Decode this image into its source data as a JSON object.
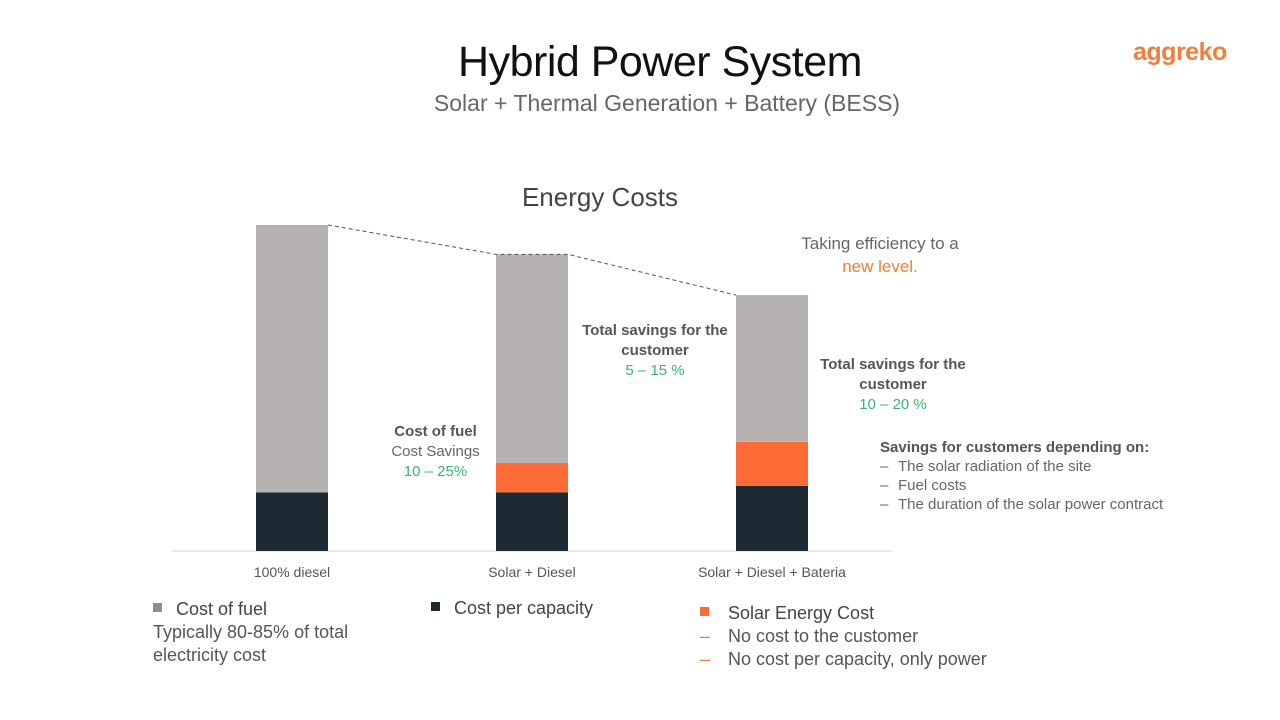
{
  "header": {
    "title": "Hybrid Power System",
    "subtitle": "Solar + Thermal Generation + Battery (BESS)",
    "logo": "aggreko"
  },
  "colors": {
    "fuel": "#b5b1b0",
    "capacity": "#1e2a33",
    "solar": "#ff6b35",
    "accent": "#f47c3c",
    "savings": "#3cb371"
  },
  "chart_data": {
    "type": "bar",
    "stacked": true,
    "title": "Energy Costs",
    "categories": [
      "100% diesel",
      "Solar + Diesel",
      "Solar + Diesel + Bateria"
    ],
    "series": [
      {
        "name": "Cost per capacity",
        "values": [
          18,
          18,
          20
        ]
      },
      {
        "name": "Solar Energy Cost",
        "values": [
          0,
          9,
          13.5
        ]
      },
      {
        "name": "Cost of fuel",
        "values": [
          82,
          64,
          45
        ]
      }
    ],
    "ylim": [
      0,
      100
    ],
    "trend_line": "dashed line linking bar tops",
    "grid": false
  },
  "annotations": {
    "efficiency": {
      "line1": "Taking efficiency to a",
      "line2": "new level."
    },
    "fuel": {
      "head": "Cost of fuel",
      "line": "Cost Savings",
      "value": "10 – 25%"
    },
    "savings1": {
      "head": "Total savings for the customer",
      "value": "5 – 15 %"
    },
    "savings2": {
      "head": "Total savings for the customer",
      "value": "10 – 20 %"
    },
    "depend": {
      "head": "Savings for customers depending on:",
      "items": [
        "The solar radiation of the site",
        "Fuel costs",
        "The duration of the solar power contract"
      ]
    }
  },
  "legend": {
    "fuel": {
      "label": "Cost of fuel",
      "desc": "Typically 80-85% of total electricity cost"
    },
    "capacity": {
      "label": "Cost per capacity"
    },
    "solar": {
      "label": "Solar Energy Cost",
      "items": [
        "No cost to the customer",
        "No cost per capacity, only power"
      ]
    }
  }
}
